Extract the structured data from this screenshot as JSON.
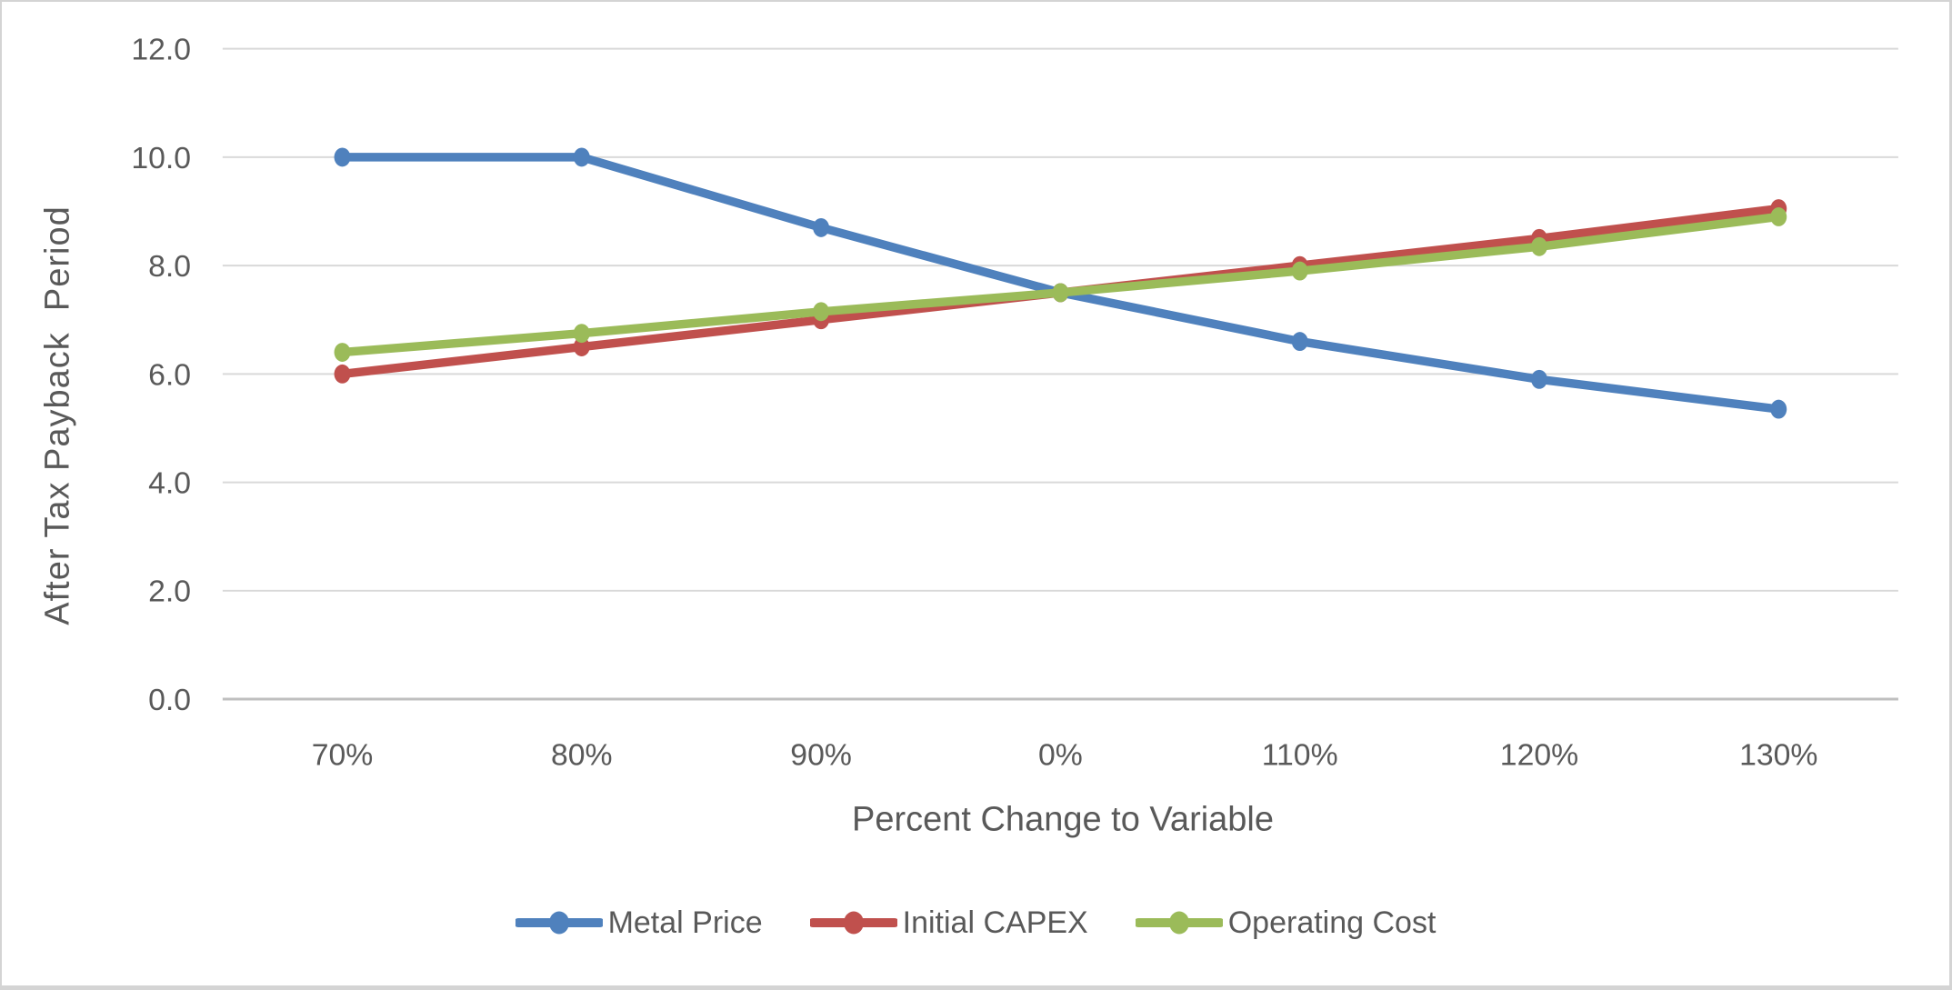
{
  "chart_data": {
    "type": "line",
    "title": "",
    "xlabel": "Percent Change to Variable",
    "ylabel": "After Tax Payback  Period",
    "categories": [
      "70%",
      "80%",
      "90%",
      "0%",
      "110%",
      "120%",
      "130%"
    ],
    "series": [
      {
        "name": "Metal Price",
        "color": "#4F81BD",
        "values": [
          10.0,
          10.0,
          8.7,
          7.5,
          6.6,
          5.9,
          5.35
        ]
      },
      {
        "name": "Initial CAPEX",
        "color": "#C0504D",
        "values": [
          6.0,
          6.5,
          7.0,
          7.5,
          8.0,
          8.5,
          9.05
        ]
      },
      {
        "name": "Operating Cost",
        "color": "#9BBB59",
        "values": [
          6.4,
          6.75,
          7.15,
          7.5,
          7.9,
          8.35,
          8.9
        ]
      }
    ],
    "y_ticks": [
      "0.0",
      "2.0",
      "4.0",
      "6.0",
      "8.0",
      "10.0",
      "12.0"
    ],
    "ylim": [
      0,
      12
    ],
    "grid": true,
    "legend_position": "bottom",
    "marker": "circle",
    "colors": {
      "text": "#595959",
      "gridline": "#D9D9D9",
      "axis": "#BFBFBF",
      "background": "#FFFFFF",
      "frame_border": "#D4D4D4"
    }
  }
}
